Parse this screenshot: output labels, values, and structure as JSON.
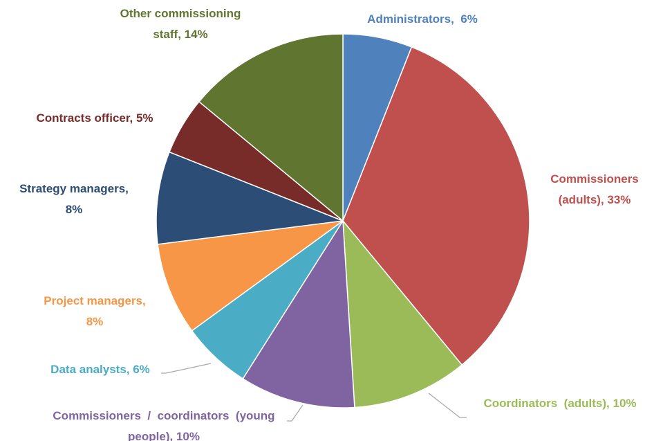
{
  "chart_data": {
    "type": "pie",
    "title": "",
    "legend": "none",
    "slices": [
      {
        "name": "Administrators",
        "value": 6,
        "color": "#4f81bd",
        "label_lines": [
          "Administrators,  6%"
        ]
      },
      {
        "name": "Commissioners (adults)",
        "value": 33,
        "color": "#c0504d",
        "label_lines": [
          "Commissioners",
          "(adults), 33%"
        ]
      },
      {
        "name": "Coordinators (adults)",
        "value": 10,
        "color": "#9bbb59",
        "label_lines": [
          "Coordinators  (adults), 10%"
        ]
      },
      {
        "name": "Commissioners / coordinators (young people)",
        "value": 10,
        "color": "#8064a2",
        "label_lines": [
          "Commissioners  /  coordinators  (young",
          "people), 10%"
        ]
      },
      {
        "name": "Data analysts",
        "value": 6,
        "color": "#4bacc6",
        "label_lines": [
          "Data analysts, 6%"
        ]
      },
      {
        "name": "Project managers",
        "value": 8,
        "color": "#f79646",
        "label_lines": [
          "Project managers,",
          "8%"
        ]
      },
      {
        "name": "Strategy managers",
        "value": 8,
        "color": "#2c4d75",
        "label_lines": [
          "Strategy managers,",
          "8%"
        ]
      },
      {
        "name": "Contracts officer",
        "value": 5,
        "color": "#772c2a",
        "label_lines": [
          "Contracts officer, 5%"
        ]
      },
      {
        "name": "Other commissioning staff",
        "value": 14,
        "color": "#5f7530",
        "label_lines": [
          "Other commissioning",
          "staff, 14%"
        ]
      }
    ]
  }
}
